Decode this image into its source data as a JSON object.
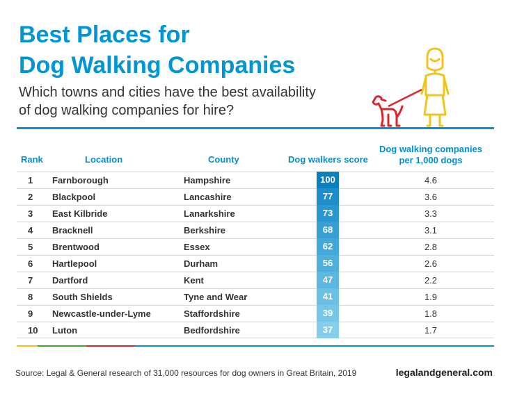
{
  "header": {
    "title_line1": "Best Places for",
    "title_line2": "Dog Walking Companies",
    "subtitle_line1": "Which towns and cities have the best availability",
    "subtitle_line2": "of dog walking companies for hire?"
  },
  "table": {
    "columns": {
      "rank": "Rank",
      "location": "Location",
      "county": "County",
      "score": "Dog walkers score",
      "companies_line1": "Dog walking companies",
      "companies_line2": "per 1,000 dogs"
    },
    "rows": [
      {
        "rank": "1",
        "location": "Farnborough",
        "county": "Hampshire",
        "score": "100",
        "companies": "4.6",
        "color": "#0a7fc0"
      },
      {
        "rank": "2",
        "location": "Blackpool",
        "county": "Lancashire",
        "score": "77",
        "companies": "3.6",
        "color": "#1d8ecb"
      },
      {
        "rank": "3",
        "location": "East Kilbride",
        "county": "Lanarkshire",
        "score": "73",
        "companies": "3.3",
        "color": "#2a97d0"
      },
      {
        "rank": "4",
        "location": "Bracknell",
        "county": "Berkshire",
        "score": "68",
        "companies": "3.1",
        "color": "#36a0d5"
      },
      {
        "rank": "5",
        "location": "Brentwood",
        "county": "Essex",
        "score": "62",
        "companies": "2.8",
        "color": "#43a8d9"
      },
      {
        "rank": "6",
        "location": "Hartlepool",
        "county": "Durham",
        "score": "56",
        "companies": "2.6",
        "color": "#50b0dd"
      },
      {
        "rank": "7",
        "location": "Dartford",
        "county": "Kent",
        "score": "47",
        "companies": "2.2",
        "color": "#5db8e1"
      },
      {
        "rank": "8",
        "location": "South Shields",
        "county": "Tyne and Wear",
        "score": "41",
        "companies": "1.9",
        "color": "#6bc0e5"
      },
      {
        "rank": "9",
        "location": "Newcastle-under-Lyme",
        "county": "Staffordshire",
        "score": "39",
        "companies": "1.8",
        "color": "#77c6e8"
      },
      {
        "rank": "10",
        "location": "Luton",
        "county": "Bedfordshire",
        "score": "37",
        "companies": "1.7",
        "color": "#84cdeb"
      }
    ]
  },
  "footer": {
    "source": "Source: Legal & General research of 31,000 resources for dog owners in Great Britain, 2019",
    "brand": "legalandgeneral.com"
  },
  "colors": {
    "accent": "#0096d6",
    "rule": "#0a8fcf",
    "illustration_person": "#f0c419",
    "illustration_dog": "#d9262c"
  },
  "icons": {
    "illustration": "woman-walking-dog-icon"
  }
}
